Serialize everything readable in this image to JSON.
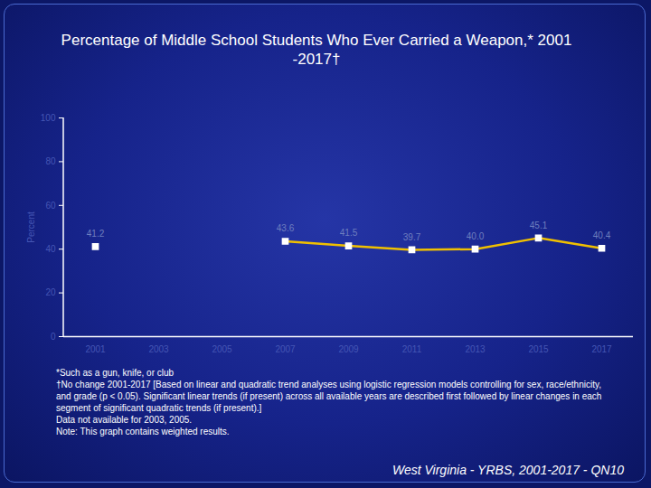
{
  "chart_data": {
    "type": "line",
    "title": "Percentage of Middle School Students Who Ever Carried a Weapon,* 2001 -2017†",
    "y_label": "Percent",
    "categories": [
      "2001",
      "2003",
      "2005",
      "2007",
      "2009",
      "2011",
      "2013",
      "2015",
      "2017"
    ],
    "values": [
      41.2,
      null,
      null,
      43.6,
      41.5,
      39.7,
      40.0,
      45.1,
      40.4
    ],
    "value_labels": [
      "41.2",
      null,
      null,
      "43.6",
      "41.5",
      "39.7",
      "40.0",
      "45.1",
      "40.4"
    ],
    "color": "#f0c000",
    "marker": "square",
    "ylim": [
      0,
      100
    ],
    "yticks": [
      0,
      20,
      40,
      60,
      80,
      100
    ],
    "grid": false,
    "data_labels": true,
    "notes": [
      "*Such as a gun, knife, or club",
      "†No change 2001-2017 [Based on linear and quadratic trend analyses using logistic regression models controlling for sex, race/ethnicity, and grade (p < 0.05). Significant linear trends (if present) across all available years are described first followed by linear changes in each segment of significant quadratic trends (if present).]",
      "Data not available for 2003, 2005.",
      "Note: This graph contains weighted results."
    ],
    "source": "West Virginia - YRBS, 2001-2017 - QN10"
  }
}
